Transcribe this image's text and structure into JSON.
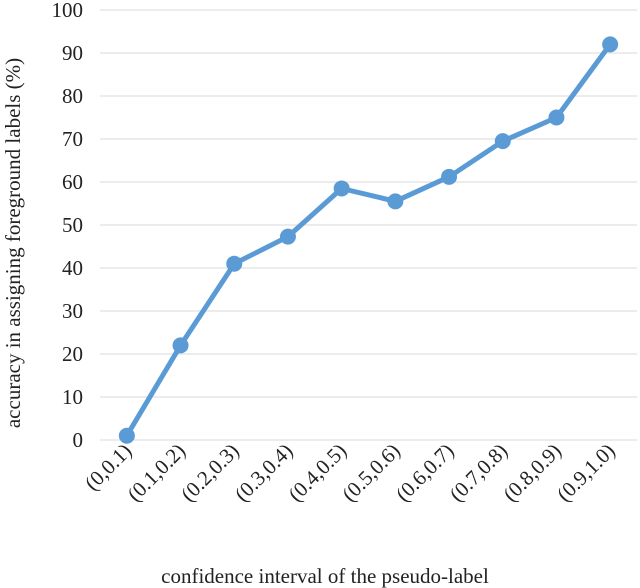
{
  "chart_data": {
    "type": "line",
    "title": "",
    "xlabel": "confidence interval of the pseudo-label",
    "ylabel": "accuracy in assigning foreground labels  (%)",
    "categories": [
      "(0,0.1)",
      "(0.1,0.2)",
      "(0.2,0.3)",
      "(0.3,0.4)",
      "(0.4,0.5)",
      "(0.5,0.6)",
      "(0.6,0.7)",
      "(0.7,0.8)",
      "(0.8,0.9)",
      "(0.9,1.0)"
    ],
    "values": [
      1,
      22,
      41,
      47.3,
      58.5,
      55.5,
      61.2,
      69.5,
      75,
      92
    ],
    "ylim": [
      0,
      100
    ],
    "yticks": [
      0,
      10,
      20,
      30,
      40,
      50,
      60,
      70,
      80,
      90,
      100
    ],
    "grid": true,
    "colors": {
      "line": "#5b9bd5",
      "grid": "#d9d9d9",
      "text": "#222222"
    }
  }
}
